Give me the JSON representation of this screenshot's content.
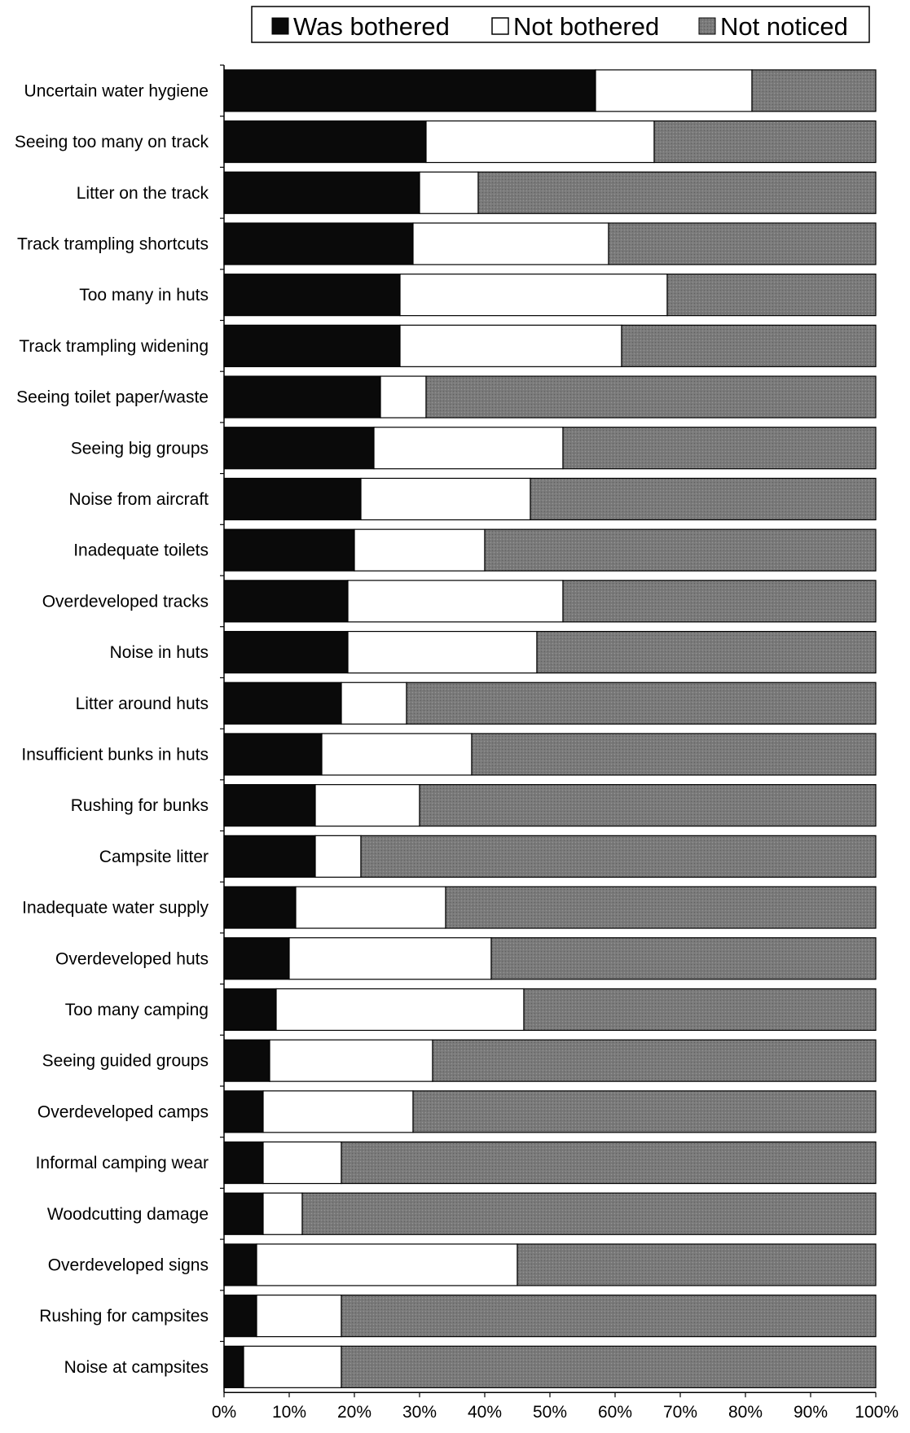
{
  "colors": {
    "was_bothered": "#0a0a0a",
    "not_bothered": "#ffffff",
    "not_noticed": "#7a7a7a"
  },
  "chart_data": {
    "type": "bar",
    "orientation": "horizontal",
    "stacked": true,
    "title": "",
    "xlabel": "",
    "ylabel": "",
    "xlim": [
      0,
      100
    ],
    "legend_position": "top-right",
    "grid": false,
    "x_ticks": [
      "0%",
      "10%",
      "20%",
      "30%",
      "40%",
      "50%",
      "60%",
      "70%",
      "80%",
      "90%",
      "100%"
    ],
    "categories": [
      "Uncertain water hygiene",
      "Seeing too many on track",
      "Litter on the track",
      "Track trampling shortcuts",
      "Too many in huts",
      "Track trampling widening",
      "Seeing toilet paper/waste",
      "Seeing big groups",
      "Noise from aircraft",
      "Inadequate toilets",
      "Overdeveloped tracks",
      "Noise in huts",
      "Litter around huts",
      "Insufficient bunks in huts",
      "Rushing for bunks",
      "Campsite litter",
      "Inadequate water supply",
      "Overdeveloped huts",
      "Too many camping",
      "Seeing guided groups",
      "Overdeveloped camps",
      "Informal camping wear",
      "Woodcutting damage",
      "Overdeveloped signs",
      "Rushing for campsites",
      "Noise at campsites"
    ],
    "series": [
      {
        "name": "Was bothered",
        "values": [
          57,
          31,
          30,
          29,
          27,
          27,
          24,
          23,
          21,
          20,
          19,
          19,
          18,
          15,
          14,
          14,
          11,
          10,
          8,
          7,
          6,
          6,
          6,
          5,
          5,
          3
        ]
      },
      {
        "name": "Not bothered",
        "values": [
          24,
          35,
          9,
          30,
          41,
          34,
          7,
          29,
          26,
          20,
          33,
          29,
          10,
          23,
          16,
          7,
          23,
          31,
          38,
          25,
          23,
          12,
          6,
          40,
          13,
          15
        ]
      },
      {
        "name": "Not noticed",
        "values": [
          19,
          34,
          61,
          41,
          32,
          39,
          69,
          48,
          53,
          60,
          48,
          52,
          72,
          62,
          70,
          79,
          66,
          59,
          54,
          68,
          71,
          82,
          88,
          55,
          82,
          82
        ]
      }
    ]
  }
}
